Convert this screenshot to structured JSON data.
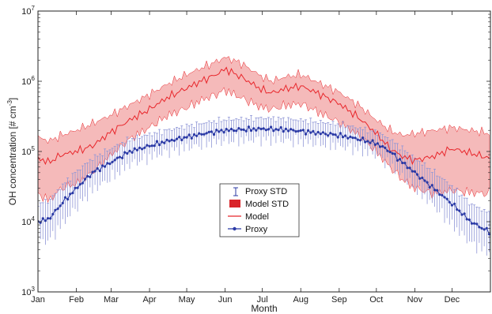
{
  "chart_data": {
    "type": "line",
    "title": "",
    "xlabel": "Month",
    "ylabel": "OH concentration [# cm",
    "ylabel_sup": "-3",
    "ylabel_close": "]",
    "yscale": "log",
    "ylim": [
      1000,
      10000000
    ],
    "xlim": [
      1,
      366
    ],
    "y_ticks": [
      {
        "value": 1000,
        "base": "10",
        "exp": "3"
      },
      {
        "value": 10000,
        "base": "10",
        "exp": "4"
      },
      {
        "value": 100000,
        "base": "10",
        "exp": "5"
      },
      {
        "value": 1000000,
        "base": "10",
        "exp": "6"
      },
      {
        "value": 10000000,
        "base": "10",
        "exp": "7"
      }
    ],
    "months": [
      {
        "label": "Jan",
        "day": 1
      },
      {
        "label": "Feb",
        "day": 32
      },
      {
        "label": "Mar",
        "day": 60
      },
      {
        "label": "Apr",
        "day": 91
      },
      {
        "label": "May",
        "day": 121
      },
      {
        "label": "Jun",
        "day": 152
      },
      {
        "label": "Jul",
        "day": 182
      },
      {
        "label": "Aug",
        "day": 213
      },
      {
        "label": "Sep",
        "day": 244
      },
      {
        "label": "Oct",
        "day": 274
      },
      {
        "label": "Nov",
        "day": 305
      },
      {
        "label": "Dec",
        "day": 335
      }
    ],
    "grid": false,
    "legend_position": "center",
    "legend": [
      {
        "key": "proxy_std",
        "label": "Proxy STD"
      },
      {
        "key": "model_std",
        "label": "Model STD"
      },
      {
        "key": "model",
        "label": "Model"
      },
      {
        "key": "proxy",
        "label": "Proxy"
      }
    ],
    "colors": {
      "model": "#e8262b",
      "model_band": "#f2a3a3",
      "proxy": "#2b3aa6",
      "proxy_std": "#8f96d6"
    },
    "series": [
      {
        "name": "Model",
        "x": [
          1,
          10,
          20,
          32,
          45,
          60,
          75,
          91,
          105,
          121,
          135,
          145,
          152,
          165,
          182,
          190,
          200,
          213,
          225,
          244,
          260,
          274,
          285,
          295,
          305,
          320,
          335,
          350,
          366
        ],
        "values": [
          80000,
          70000,
          90000,
          100000,
          120000,
          190000,
          280000,
          400000,
          580000,
          800000,
          1050000,
          1250000,
          1500000,
          1150000,
          750000,
          680000,
          780000,
          850000,
          700000,
          480000,
          300000,
          180000,
          110000,
          85000,
          75000,
          85000,
          110000,
          95000,
          80000
        ],
        "std_lower": [
          25000,
          20000,
          30000,
          35000,
          50000,
          90000,
          150000,
          220000,
          320000,
          420000,
          560000,
          650000,
          750000,
          580000,
          420000,
          400000,
          450000,
          480000,
          380000,
          260000,
          170000,
          100000,
          60000,
          40000,
          30000,
          25000,
          28000,
          26000,
          25000
        ],
        "std_upper": [
          160000,
          140000,
          170000,
          200000,
          250000,
          330000,
          460000,
          650000,
          900000,
          1250000,
          1600000,
          1900000,
          2200000,
          1800000,
          1150000,
          1000000,
          1150000,
          1250000,
          1000000,
          700000,
          450000,
          280000,
          200000,
          170000,
          180000,
          200000,
          220000,
          200000,
          180000
        ]
      },
      {
        "name": "Proxy",
        "x": [
          1,
          10,
          20,
          32,
          45,
          60,
          75,
          91,
          105,
          121,
          135,
          152,
          165,
          182,
          200,
          213,
          225,
          244,
          260,
          274,
          285,
          295,
          305,
          320,
          335,
          350,
          366
        ],
        "values": [
          10000,
          11000,
          18000,
          30000,
          50000,
          70000,
          100000,
          120000,
          140000,
          160000,
          180000,
          200000,
          205000,
          210000,
          205000,
          195000,
          185000,
          170000,
          150000,
          130000,
          100000,
          70000,
          50000,
          30000,
          18000,
          10000,
          7000
        ],
        "std_lower": [
          5000,
          5500,
          9000,
          16000,
          28000,
          42000,
          65000,
          82000,
          98000,
          112000,
          126000,
          140000,
          144000,
          147000,
          144000,
          137000,
          130000,
          119000,
          105000,
          88000,
          65000,
          44000,
          30000,
          17000,
          9000,
          5000,
          3500
        ],
        "std_upper": [
          18000,
          20000,
          32000,
          52000,
          80000,
          110000,
          150000,
          175000,
          200000,
          230000,
          255000,
          285000,
          290000,
          300000,
          290000,
          280000,
          265000,
          245000,
          215000,
          190000,
          150000,
          110000,
          80000,
          52000,
          32000,
          18000,
          13000
        ]
      }
    ]
  }
}
